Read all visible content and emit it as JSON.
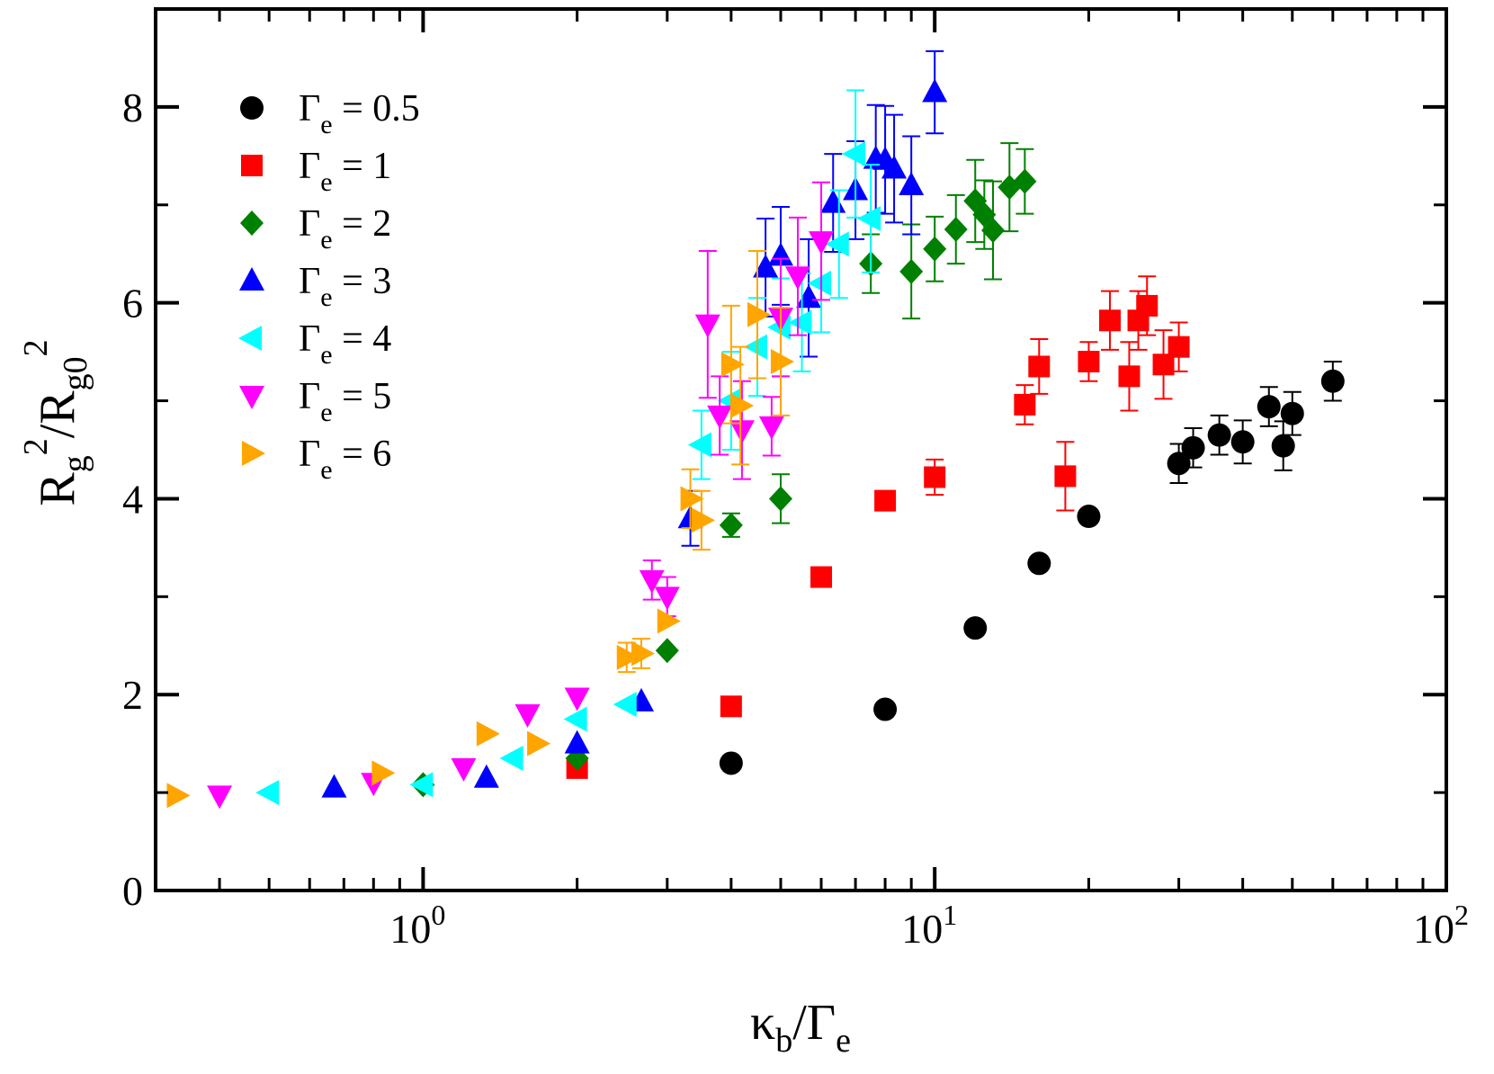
{
  "chart_data": {
    "type": "scatter",
    "x_scale": "log",
    "xlim": [
      0.3,
      100
    ],
    "ylim": [
      0,
      9
    ],
    "grid": false,
    "legend_position": "top-left",
    "xlabel": {
      "main": "κ",
      "sub1": "b",
      "mid": "/Γ",
      "sub2": "e"
    },
    "ylabel": {
      "r1": "R",
      "sub1": "g",
      "sup1": "2",
      "mid": "/R",
      "sub2": "g0",
      "sup2": "2"
    },
    "x_ticks": [
      {
        "value": 1,
        "base": "10",
        "exp": "0"
      },
      {
        "value": 10,
        "base": "10",
        "exp": "1"
      },
      {
        "value": 100,
        "base": "10",
        "exp": "2"
      }
    ],
    "y_ticks": [
      {
        "value": 0,
        "label": "0"
      },
      {
        "value": 2,
        "label": "2"
      },
      {
        "value": 4,
        "label": "4"
      },
      {
        "value": 6,
        "label": "6"
      },
      {
        "value": 8,
        "label": "8"
      }
    ],
    "series": [
      {
        "name": "Γe = 0.5",
        "gamma": "Γ",
        "sub": "e",
        "value_text": " = 0.5",
        "color": "#000000",
        "marker": "circle",
        "points": [
          [
            4,
            1.3,
            0
          ],
          [
            8,
            1.85,
            0
          ],
          [
            12,
            2.68,
            0
          ],
          [
            16,
            3.34,
            0
          ],
          [
            20,
            3.82,
            0.05
          ],
          [
            30,
            4.36,
            0.2
          ],
          [
            32,
            4.52,
            0.2
          ],
          [
            36,
            4.65,
            0.2
          ],
          [
            40,
            4.58,
            0.22
          ],
          [
            45,
            4.94,
            0.2
          ],
          [
            48,
            4.54,
            0.25
          ],
          [
            50,
            4.87,
            0.22
          ],
          [
            60,
            5.2,
            0.2
          ]
        ]
      },
      {
        "name": "Γe = 1",
        "gamma": "Γ",
        "sub": "e",
        "value_text": " = 1",
        "color": "#ff0000",
        "marker": "square",
        "points": [
          [
            2,
            1.25,
            0
          ],
          [
            4,
            1.88,
            0
          ],
          [
            6,
            3.2,
            0
          ],
          [
            8,
            3.98,
            0
          ],
          [
            10,
            4.22,
            0.18
          ],
          [
            15,
            4.96,
            0.2
          ],
          [
            16,
            5.35,
            0.28
          ],
          [
            18,
            4.23,
            0.35
          ],
          [
            20,
            5.4,
            0.2
          ],
          [
            22,
            5.82,
            0.3
          ],
          [
            24,
            5.25,
            0.35
          ],
          [
            25,
            5.82,
            0.3
          ],
          [
            26,
            5.97,
            0.3
          ],
          [
            28,
            5.37,
            0.35
          ],
          [
            30,
            5.55,
            0.25
          ]
        ]
      },
      {
        "name": "Γe = 2",
        "gamma": "Γ",
        "sub": "e",
        "value_text": " = 2",
        "color": "#008000",
        "marker": "diamond",
        "points": [
          [
            1,
            1.08,
            0
          ],
          [
            2,
            1.35,
            0
          ],
          [
            3,
            2.45,
            0
          ],
          [
            4,
            3.73,
            0.12
          ],
          [
            5,
            4.0,
            0.25
          ],
          [
            7.5,
            6.4,
            0.3
          ],
          [
            9,
            6.32,
            0.48
          ],
          [
            10,
            6.55,
            0.33
          ],
          [
            11,
            6.75,
            0.35
          ],
          [
            12,
            7.04,
            0.42
          ],
          [
            12.5,
            6.9,
            0.35
          ],
          [
            13,
            6.74,
            0.5
          ],
          [
            14,
            7.18,
            0.45
          ],
          [
            15,
            7.24,
            0.33
          ]
        ]
      },
      {
        "name": "Γe = 3",
        "gamma": "Γ",
        "sub": "e",
        "value_text": " = 3",
        "color": "#0000ff",
        "marker": "triangle-up",
        "points": [
          [
            0.67,
            1.05,
            0
          ],
          [
            1.33,
            1.15,
            0
          ],
          [
            2,
            1.5,
            0
          ],
          [
            2.67,
            1.93,
            0
          ],
          [
            3.33,
            3.8,
            0.28
          ],
          [
            4.67,
            6.36,
            0.5
          ],
          [
            5,
            6.48,
            0.5
          ],
          [
            5.67,
            6.05,
            0.6
          ],
          [
            6.33,
            7.02,
            0.5
          ],
          [
            7,
            7.15,
            0.5
          ],
          [
            7.67,
            7.47,
            0.55
          ],
          [
            8,
            7.46,
            0.55
          ],
          [
            8.33,
            7.37,
            0.55
          ],
          [
            9,
            7.2,
            0.5
          ],
          [
            10,
            8.15,
            0.42
          ]
        ]
      },
      {
        "name": "Γe = 4",
        "gamma": "Γ",
        "sub": "e",
        "value_text": " = 4",
        "color": "#00ffff",
        "marker": "triangle-left",
        "points": [
          [
            0.5,
            1.0,
            0
          ],
          [
            1,
            1.08,
            0
          ],
          [
            1.5,
            1.35,
            0
          ],
          [
            2,
            1.75,
            0
          ],
          [
            2.5,
            1.9,
            0
          ],
          [
            3.5,
            4.55,
            0.35
          ],
          [
            4,
            5.0,
            0.5
          ],
          [
            4.5,
            5.55,
            0.5
          ],
          [
            5,
            5.75,
            0.5
          ],
          [
            5.5,
            5.8,
            0.5
          ],
          [
            6,
            6.2,
            0.5
          ],
          [
            6.5,
            6.6,
            0.55
          ],
          [
            7,
            7.52,
            0.65
          ],
          [
            7.5,
            6.86,
            0.55
          ]
        ]
      },
      {
        "name": "Γe = 5",
        "gamma": "Γ",
        "sub": "e",
        "value_text": " = 5",
        "color": "#ff00ff",
        "marker": "triangle-down",
        "points": [
          [
            0.4,
            0.97,
            0
          ],
          [
            0.8,
            1.1,
            0
          ],
          [
            1.2,
            1.25,
            0
          ],
          [
            1.6,
            1.8,
            0
          ],
          [
            2,
            1.97,
            0
          ],
          [
            2.8,
            3.17,
            0.2
          ],
          [
            3,
            3.0,
            0.2
          ],
          [
            3.6,
            5.78,
            0.75
          ],
          [
            3.8,
            4.85,
            0.4
          ],
          [
            4.2,
            4.7,
            0.5
          ],
          [
            4.8,
            4.74,
            0.3
          ],
          [
            5,
            5.85,
            0.6
          ],
          [
            5.4,
            6.27,
            0.6
          ],
          [
            6,
            6.63,
            0.6
          ]
        ]
      },
      {
        "name": "Γe = 6",
        "gamma": "Γ",
        "sub": "e",
        "value_text": " = 6",
        "color": "#ffa500",
        "marker": "triangle-right",
        "points": [
          [
            0.33,
            0.97,
            0
          ],
          [
            0.83,
            1.2,
            0
          ],
          [
            1.33,
            1.6,
            0
          ],
          [
            1.67,
            1.5,
            0
          ],
          [
            2.5,
            2.38,
            0.15
          ],
          [
            2.67,
            2.42,
            0.15
          ],
          [
            3,
            2.75,
            0
          ],
          [
            3.33,
            4.0,
            0.3
          ],
          [
            3.5,
            3.78,
            0.3
          ],
          [
            4,
            5.37,
            0.6
          ],
          [
            4.17,
            4.95,
            0.6
          ],
          [
            4.5,
            5.88,
            0.65
          ],
          [
            5,
            5.4,
            0.55
          ]
        ]
      }
    ]
  }
}
